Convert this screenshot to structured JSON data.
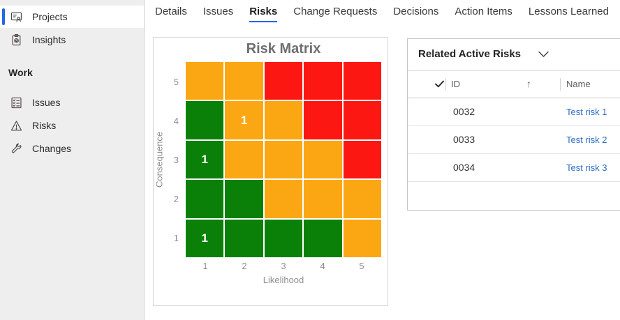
{
  "sidebar": {
    "items": [
      {
        "label": "Projects",
        "icon": "projects-board-icon",
        "selected": true
      },
      {
        "label": "Insights",
        "icon": "insights-clipboard-icon",
        "selected": false
      }
    ],
    "section": {
      "label": "Work",
      "items": [
        {
          "label": "Issues",
          "icon": "issues-checklist-icon"
        },
        {
          "label": "Risks",
          "icon": "warning-triangle-icon"
        },
        {
          "label": "Changes",
          "icon": "wrench-icon"
        }
      ]
    }
  },
  "tabs": {
    "labels": [
      "Details",
      "Issues",
      "Risks",
      "Change Requests",
      "Decisions",
      "Action Items",
      "Lessons Learned"
    ],
    "selected_index": 2
  },
  "chart_data": {
    "type": "heatmap",
    "title": "Risk Matrix",
    "xlabel": "Likelihood",
    "ylabel": "Consequence",
    "x_ticks": [
      "1",
      "2",
      "3",
      "4",
      "5"
    ],
    "y_ticks": [
      "5",
      "4",
      "3",
      "2",
      "1"
    ],
    "colors": {
      "green": "#0b8008",
      "orange": "#fba714",
      "red": "#fd1712"
    },
    "rows": [
      {
        "consequence": "5",
        "cells": [
          {
            "c": "orange"
          },
          {
            "c": "orange"
          },
          {
            "c": "red"
          },
          {
            "c": "red"
          },
          {
            "c": "red"
          }
        ]
      },
      {
        "consequence": "4",
        "cells": [
          {
            "c": "green"
          },
          {
            "c": "orange",
            "v": "1"
          },
          {
            "c": "orange"
          },
          {
            "c": "red"
          },
          {
            "c": "red"
          }
        ]
      },
      {
        "consequence": "3",
        "cells": [
          {
            "c": "green",
            "v": "1"
          },
          {
            "c": "orange"
          },
          {
            "c": "orange"
          },
          {
            "c": "orange"
          },
          {
            "c": "red"
          }
        ]
      },
      {
        "consequence": "2",
        "cells": [
          {
            "c": "green"
          },
          {
            "c": "green"
          },
          {
            "c": "orange"
          },
          {
            "c": "orange"
          },
          {
            "c": "orange"
          }
        ]
      },
      {
        "consequence": "1",
        "cells": [
          {
            "c": "green",
            "v": "1"
          },
          {
            "c": "green"
          },
          {
            "c": "green"
          },
          {
            "c": "green"
          },
          {
            "c": "orange"
          }
        ]
      }
    ],
    "legend": "off",
    "grid": "white 2px gaps between cells"
  },
  "risk_panel": {
    "title": "Related Active Risks",
    "columns": [
      "ID",
      "Name"
    ],
    "sort_indicator": "↑",
    "rows": [
      {
        "id": "0032",
        "name": "Test risk 1"
      },
      {
        "id": "0033",
        "name": "Test risk 2"
      },
      {
        "id": "0034",
        "name": "Test risk 3"
      }
    ]
  },
  "accent_colors": {
    "selected_blue": "#2764e7",
    "link_blue": "#2b6cc4"
  }
}
